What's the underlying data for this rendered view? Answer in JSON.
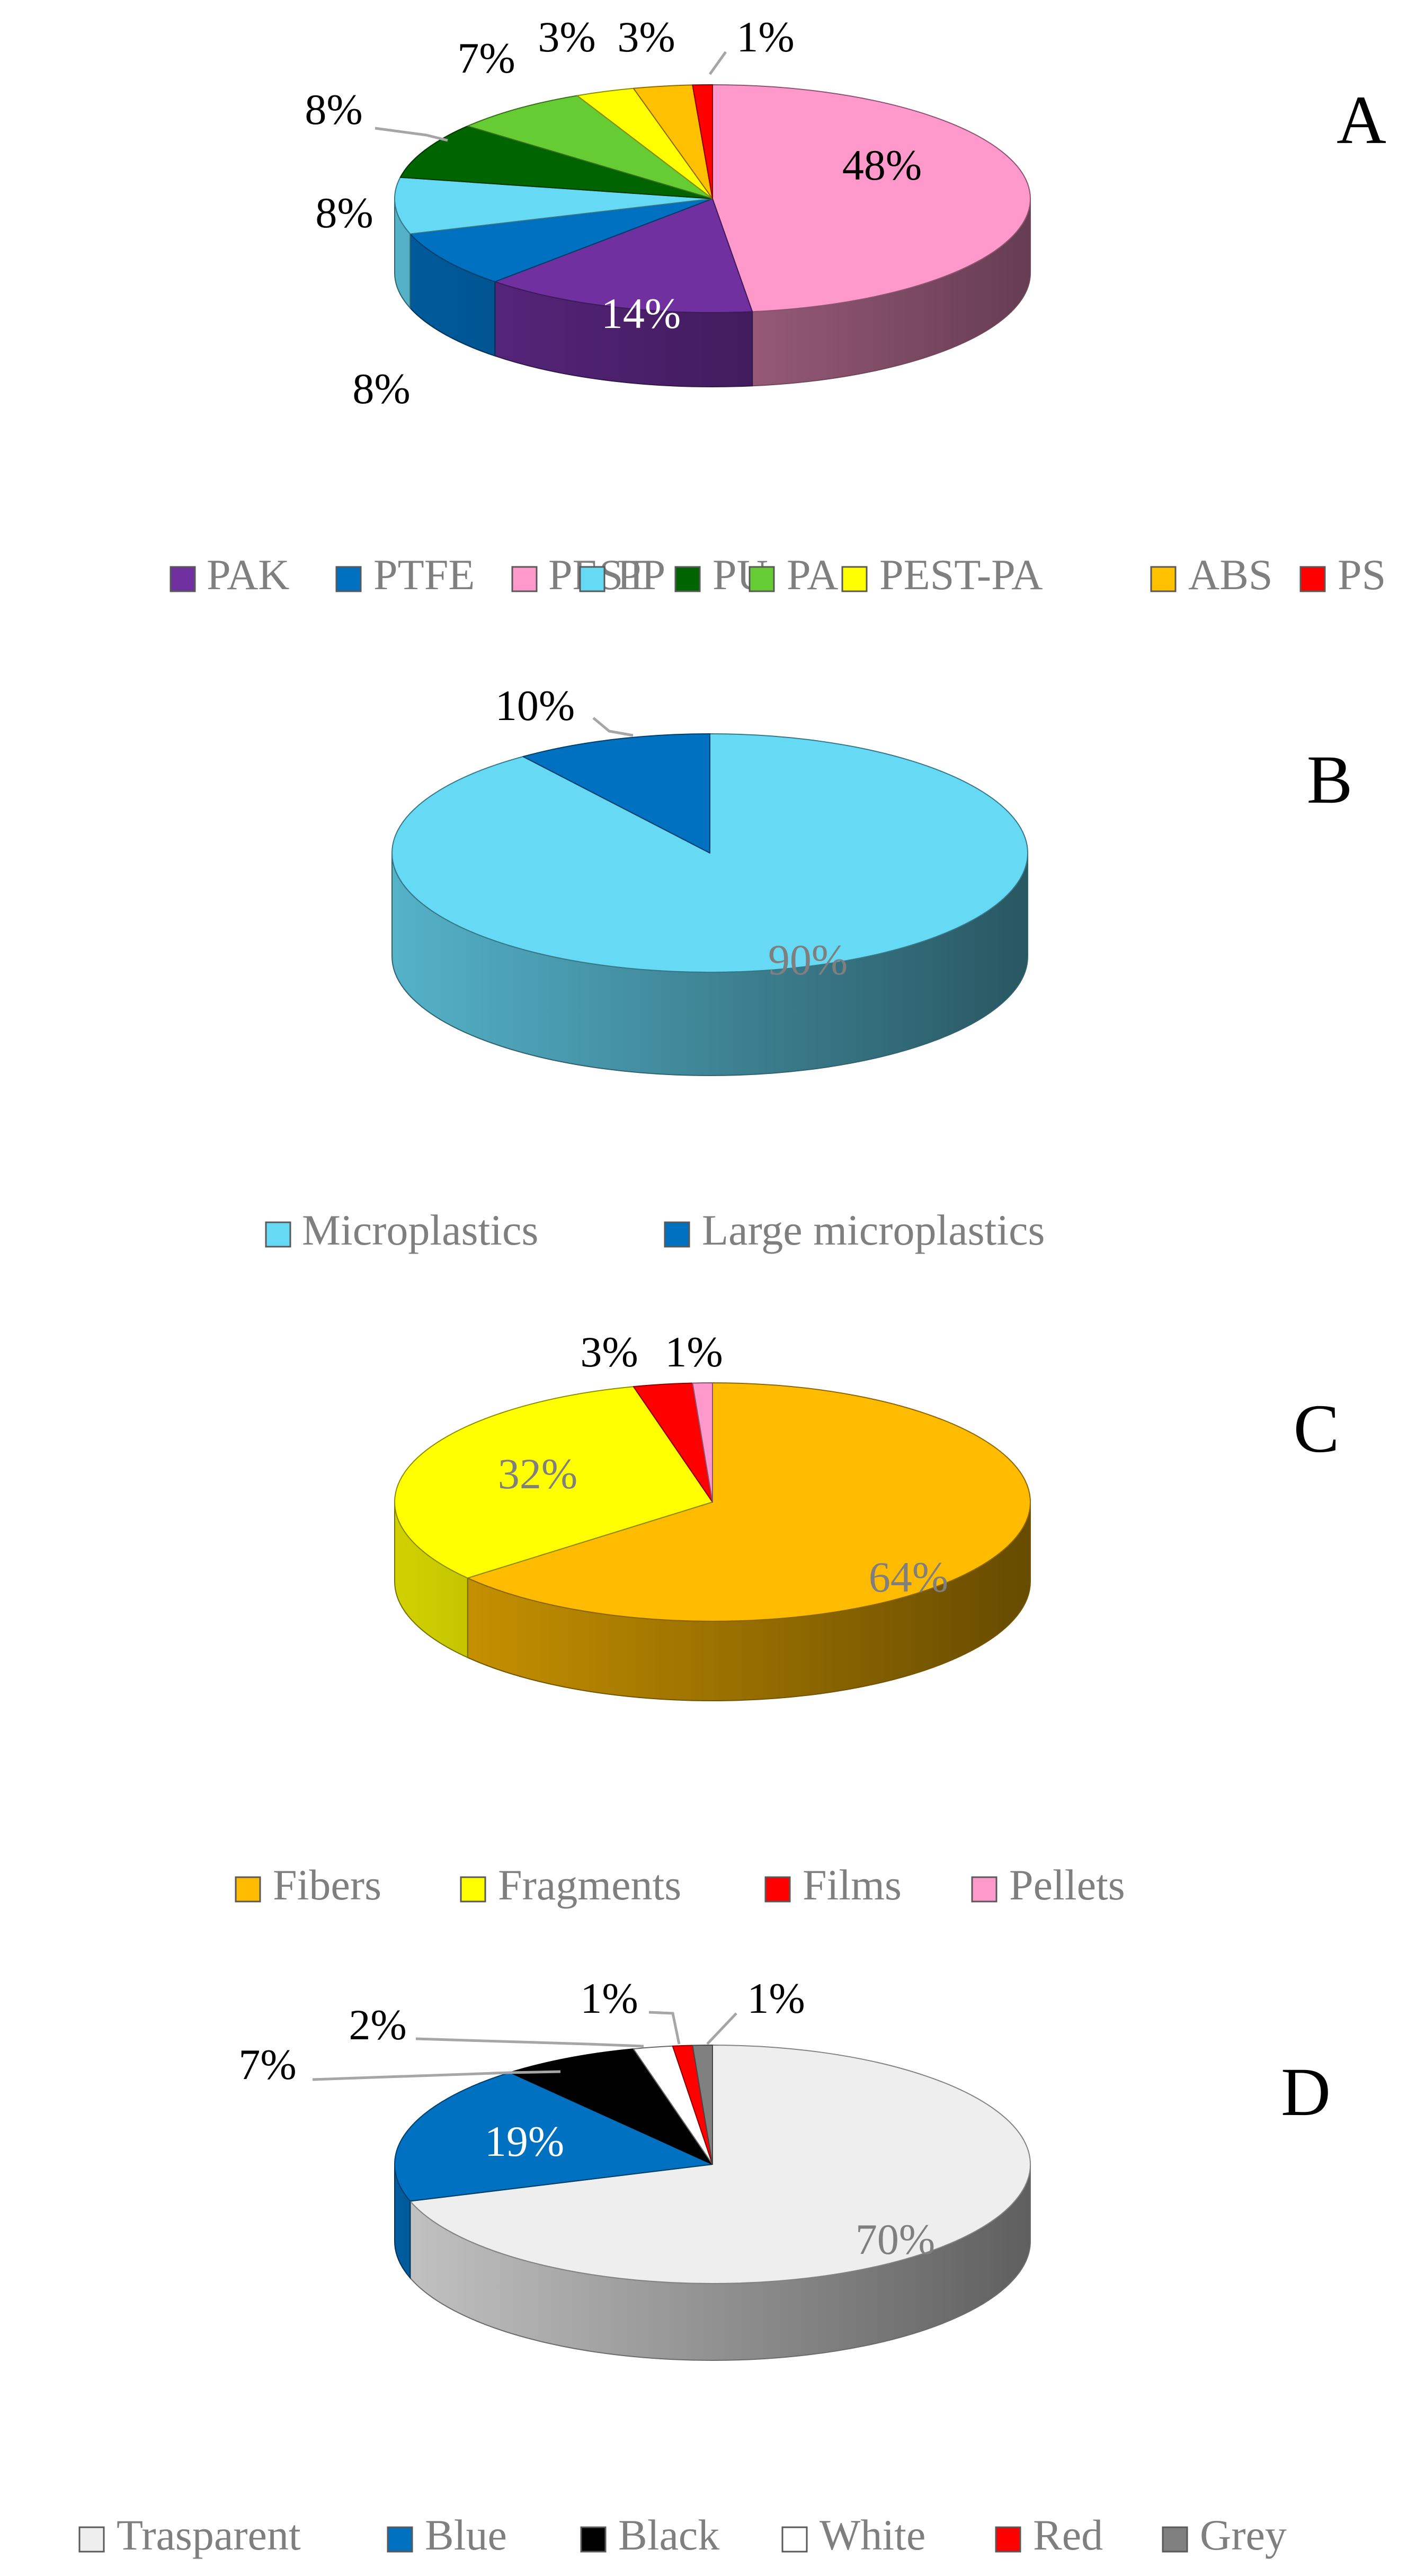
{
  "chart_data": [
    {
      "panel": "A",
      "type": "pie",
      "categories": [
        "PEST",
        "PAK",
        "PTFE",
        "PP",
        "PU",
        "PA",
        "PEST-PA",
        "ABS",
        "PS"
      ],
      "values": [
        48,
        14,
        8,
        8,
        8,
        7,
        3,
        3,
        1
      ],
      "labels": [
        "48%",
        "14%",
        "8%",
        "8%",
        "8%",
        "7%",
        "3%",
        "3%",
        "1%"
      ],
      "colors": [
        "#FF99CC",
        "#7030A0",
        "#0070C0",
        "#66D9F5",
        "#006400",
        "#66CC33",
        "#FFFF00",
        "#FFC000",
        "#FF0000"
      ],
      "legend_position": "bottom"
    },
    {
      "panel": "B",
      "type": "pie",
      "categories": [
        "Microplastics",
        "Large microplastics"
      ],
      "values": [
        90,
        10
      ],
      "labels": [
        "90%",
        "10%"
      ],
      "colors": [
        "#66D9F5",
        "#0070C0"
      ],
      "legend_position": "bottom"
    },
    {
      "panel": "C",
      "type": "pie",
      "categories": [
        "Fibers",
        "Fragments",
        "Films",
        "Pellets"
      ],
      "values": [
        64,
        32,
        3,
        1
      ],
      "labels": [
        "64%",
        "32%",
        "3%",
        "1%"
      ],
      "colors": [
        "#FFBB00",
        "#FFFF00",
        "#FF0000",
        "#FF99CC"
      ],
      "legend_position": "bottom"
    },
    {
      "panel": "D",
      "type": "pie",
      "categories": [
        "Trasparent",
        "Blue",
        "Black",
        "White",
        "Red",
        "Grey"
      ],
      "values": [
        70,
        19,
        7,
        2,
        1,
        1
      ],
      "labels": [
        "70%",
        "19%",
        "7%",
        "2%",
        "1%",
        "1%"
      ],
      "colors": [
        "#EEEEEE",
        "#0070C0",
        "#000000",
        "#FFFFFF",
        "#FF0000",
        "#808080"
      ],
      "legend_position": "bottom"
    }
  ]
}
